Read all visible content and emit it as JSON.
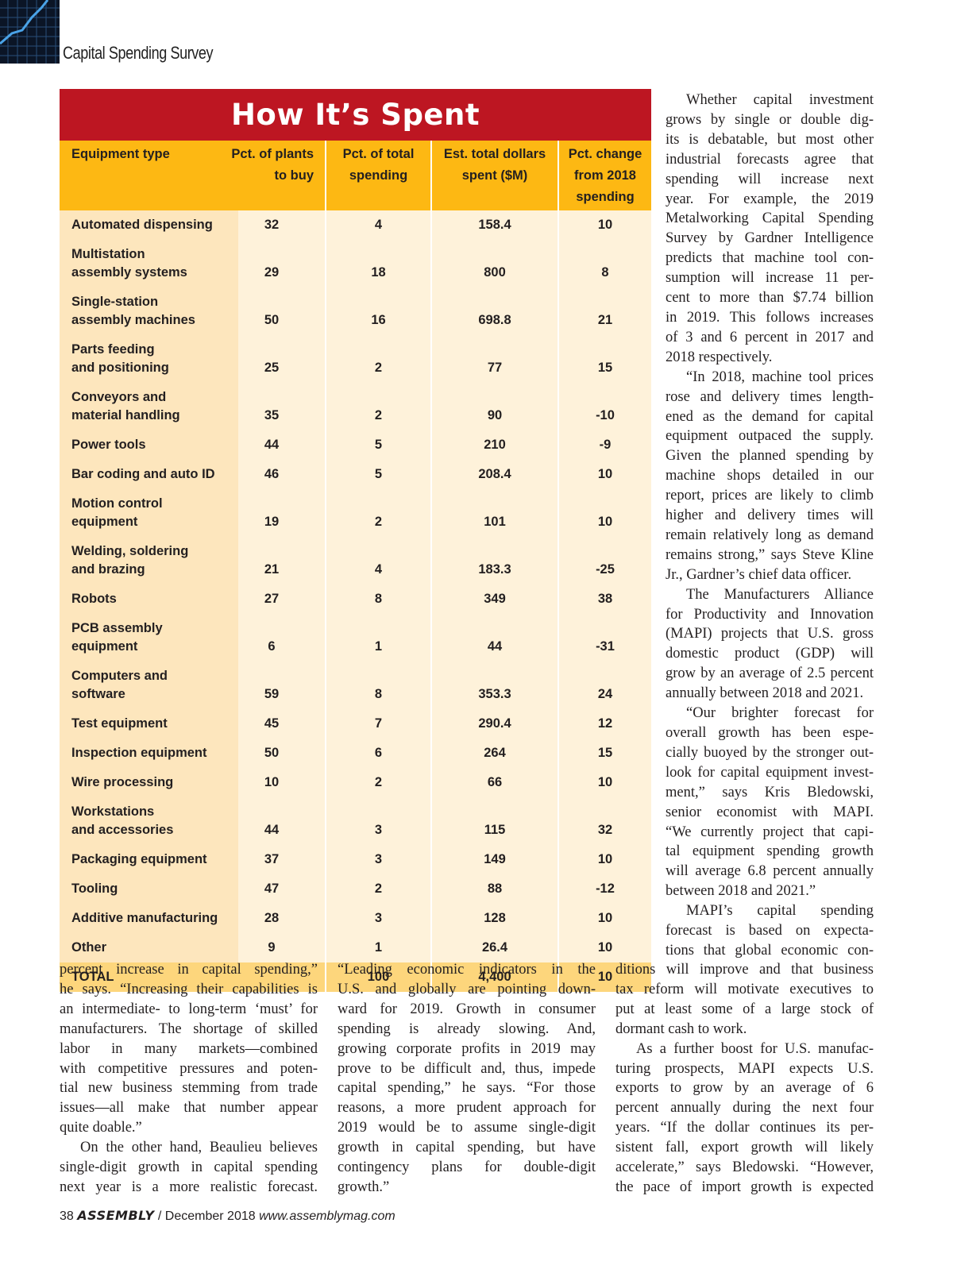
{
  "header": {
    "section": "Capital Spending Survey"
  },
  "table": {
    "title": "How It’s Spent",
    "columns": [
      "Equipment type",
      "Pct. of plants\nto buy",
      "Pct. of total\nspending",
      "Est. total dollars\nspent ($M)",
      "Pct. change\nfrom 2018\nspending"
    ],
    "rows": [
      [
        "Automated dispensing",
        "32",
        "4",
        "158.4",
        "10"
      ],
      [
        "Multistation\nassembly systems",
        "29",
        "18",
        "800",
        "8"
      ],
      [
        "Single-station\nassembly machines",
        "50",
        "16",
        "698.8",
        "21"
      ],
      [
        "Parts feeding\nand positioning",
        "25",
        "2",
        "77",
        "15"
      ],
      [
        "Conveyors and\nmaterial handling",
        "35",
        "2",
        "90",
        "-10"
      ],
      [
        "Power tools",
        "44",
        "5",
        "210",
        "-9"
      ],
      [
        "Bar coding and auto ID",
        "46",
        "5",
        "208.4",
        "10"
      ],
      [
        "Motion control equipment",
        "19",
        "2",
        "101",
        "10"
      ],
      [
        "Welding, soldering\nand brazing",
        "21",
        "4",
        "183.3",
        "-25"
      ],
      [
        "Robots",
        "27",
        "8",
        "349",
        "38"
      ],
      [
        "PCB assembly equipment",
        "6",
        "1",
        "44",
        "-31"
      ],
      [
        "Computers and software",
        "59",
        "8",
        "353.3",
        "24"
      ],
      [
        "Test equipment",
        "45",
        "7",
        "290.4",
        "12"
      ],
      [
        "Inspection equipment",
        "50",
        "6",
        "264",
        "15"
      ],
      [
        "Wire processing",
        "10",
        "2",
        "66",
        "10"
      ],
      [
        "Workstations\nand accessories",
        "44",
        "3",
        "115",
        "32"
      ],
      [
        "Packaging equipment",
        "37",
        "3",
        "149",
        "10"
      ],
      [
        "Tooling",
        "47",
        "2",
        "88",
        "-12"
      ],
      [
        "Additive manufacturing",
        "28",
        "3",
        "128",
        "10"
      ],
      [
        "Other",
        "9",
        "1",
        "26.4",
        "10"
      ]
    ],
    "total": [
      "TOTAL",
      null,
      "100",
      "4,400",
      "10"
    ]
  },
  "article": {
    "columns": [
      [
        [
          "Whether capital investment",
          "grows by single or double dig-",
          "its is debatable, but most other",
          "industrial forecasts agree that",
          "spending will increase next",
          "year. For example, the 2019",
          "Metalworking Capital Spending",
          "Survey by Gardner Intelligence",
          "predicts that machine tool con-",
          "sumption will increase 11 per-",
          "cent to more than $7.74 billion",
          "in 2019. This follows increases",
          "of 3 and 6 percent in 2017 and",
          "2018 respectively."
        ],
        [
          "“In 2018, machine tool prices",
          "rose and delivery times length-",
          "ened as the demand for capital",
          "equipment outpaced the supply.",
          "Given the planned spending by",
          "machine shops detailed in our",
          "report, prices are likely to climb",
          "higher and delivery times will",
          "remain relatively long as demand",
          "remains strong,” says Steve Kline",
          "Jr., Gardner’s chief data officer."
        ],
        [
          "The Manufacturers Alliance",
          "for Productivity and Innovation",
          "(MAPI) projects that U.S. gross",
          "domestic product (GDP) will",
          "grow by an average of 2.5 percent",
          "annually between 2018 and 2021."
        ],
        [
          "“Our brighter forecast for",
          "overall growth has been espe-",
          "cially buoyed by the stronger out-",
          "look for capital equipment invest-",
          "ment,” says Kris Bledowski,",
          "senior economist with MAPI.",
          "“We currently project that capi-",
          "tal equipment spending growth",
          "will average 6.8 percent annually",
          "between 2018 and 2021.”"
        ],
        [
          "MAPI’s capital spending",
          "forecast is based on expecta-",
          "tions that global economic con-"
        ]
      ],
      [
        [
          "percent increase in capital spending,”",
          "he says. “Increasing their capabilities is",
          "an intermediate- to long-term ‘must’ for",
          "manufacturers. The shortage of skilled",
          "labor in many markets—combined",
          "with competitive pressures and poten-",
          "tial new business stemming from trade",
          "issues—all make that number appear",
          "quite doable.”"
        ],
        [
          "On the other hand, Beaulieu believes",
          "single-digit growth in capital spending",
          "next year is a more realistic forecast."
        ]
      ],
      [
        [
          "“Leading economic indicators in the",
          "U.S. and globally are pointing down-",
          "ward for 2019. Growth in consumer",
          "spending is already slowing. And,",
          "growing corporate profits in 2019 may",
          "prove to be difficult and, thus, impede",
          "capital spending,” he says. “For those",
          "reasons, a more prudent approach for",
          "2019 would be to assume single-digit",
          "growth in capital spending, but have",
          "contingency plans for double-digit",
          "growth.”"
        ]
      ],
      [
        [
          "ditions will improve and that business",
          "tax reform will motivate executives to",
          "put at least some of a large stock of",
          "dormant cash to work."
        ],
        [
          "As a further boost for U.S. manufac-",
          "turing prospects, MAPI expects U.S.",
          "exports to grow by an average of 6",
          "percent annually during the next four",
          "years. “If the dollar continues its per-",
          "sistent fall, export growth will likely",
          "accelerate,” says Bledowski. “However,",
          "the pace of import growth is expected"
        ]
      ]
    ]
  },
  "footer": {
    "page": "38",
    "magazine": "ASSEMBLY",
    "issue": "/ December 2018",
    "url": "www.assemblymag.com"
  }
}
